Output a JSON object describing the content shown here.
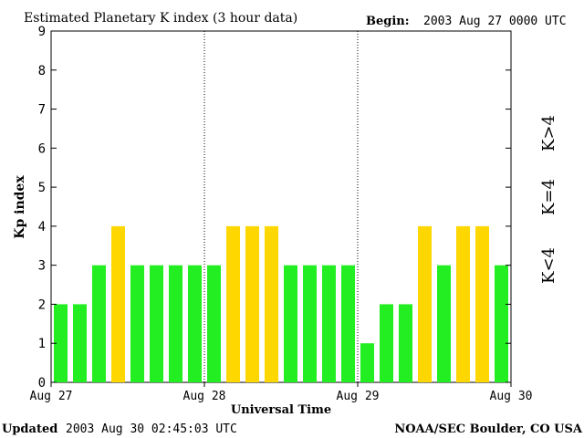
{
  "header": {
    "title": "Estimated Planetary K index (3 hour data)",
    "begin_label": "Begin:",
    "begin_value": "2003 Aug 27 0000 UTC"
  },
  "footer": {
    "updated_label": "Updated",
    "updated_value": "2003 Aug 30 02:45:03 UTC",
    "source": "NOAA/SEC Boulder, CO USA"
  },
  "legend": {
    "low_label": "K<4",
    "mid_label": "K=4",
    "high_label": "K>4"
  },
  "colors": {
    "low": "#22ee22",
    "mid": "#ffd700",
    "high": "#ff3300",
    "axis": "#000000"
  },
  "chart_data": {
    "type": "bar",
    "title": "Estimated Planetary K index (3 hour data)",
    "xlabel": "Universal Time",
    "ylabel": "Kp index",
    "ylim": [
      0,
      9
    ],
    "yticks": [
      "0",
      "1",
      "2",
      "3",
      "4",
      "5",
      "6",
      "7",
      "8",
      "9"
    ],
    "day_labels": [
      "Aug 27",
      "Aug 28",
      "Aug 29",
      "Aug 30"
    ],
    "bins_per_day": 8,
    "values": [
      2,
      2,
      3,
      4,
      3,
      3,
      3,
      3,
      3,
      4,
      4,
      4,
      3,
      3,
      3,
      3,
      1,
      2,
      2,
      4,
      3,
      4,
      4,
      3
    ]
  }
}
